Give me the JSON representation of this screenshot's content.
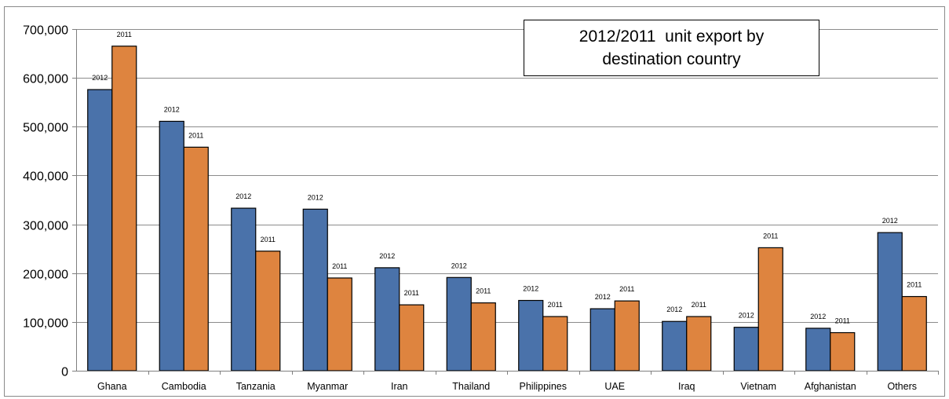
{
  "chart_data": {
    "type": "bar",
    "title_lines": [
      "2012/2011  unit export by",
      "destination country"
    ],
    "categories": [
      "Ghana",
      "Cambodia",
      "Tanzania",
      "Myanmar",
      "Iran",
      "Thailand",
      "Philippines",
      "UAE",
      "Iraq",
      "Vietnam",
      "Afghanistan",
      "Others"
    ],
    "series": [
      {
        "name": "2012",
        "color": "#4a72aa",
        "values": [
          576000,
          511000,
          333000,
          331000,
          211000,
          191000,
          144000,
          127000,
          101000,
          89000,
          87000,
          283000
        ]
      },
      {
        "name": "2011",
        "color": "#de843f",
        "values": [
          665000,
          458000,
          245000,
          190000,
          135000,
          139000,
          111000,
          143000,
          111000,
          252000,
          78000,
          152000
        ]
      }
    ],
    "bar_labels": [
      "2012",
      "2011"
    ],
    "y_ticks": [
      "0",
      "100,000",
      "200,000",
      "300,000",
      "400,000",
      "500,000",
      "600,000",
      "700,000"
    ],
    "ylim": [
      0,
      700000
    ],
    "xlabel": "",
    "ylabel": "",
    "grid": true,
    "legend": "none"
  }
}
